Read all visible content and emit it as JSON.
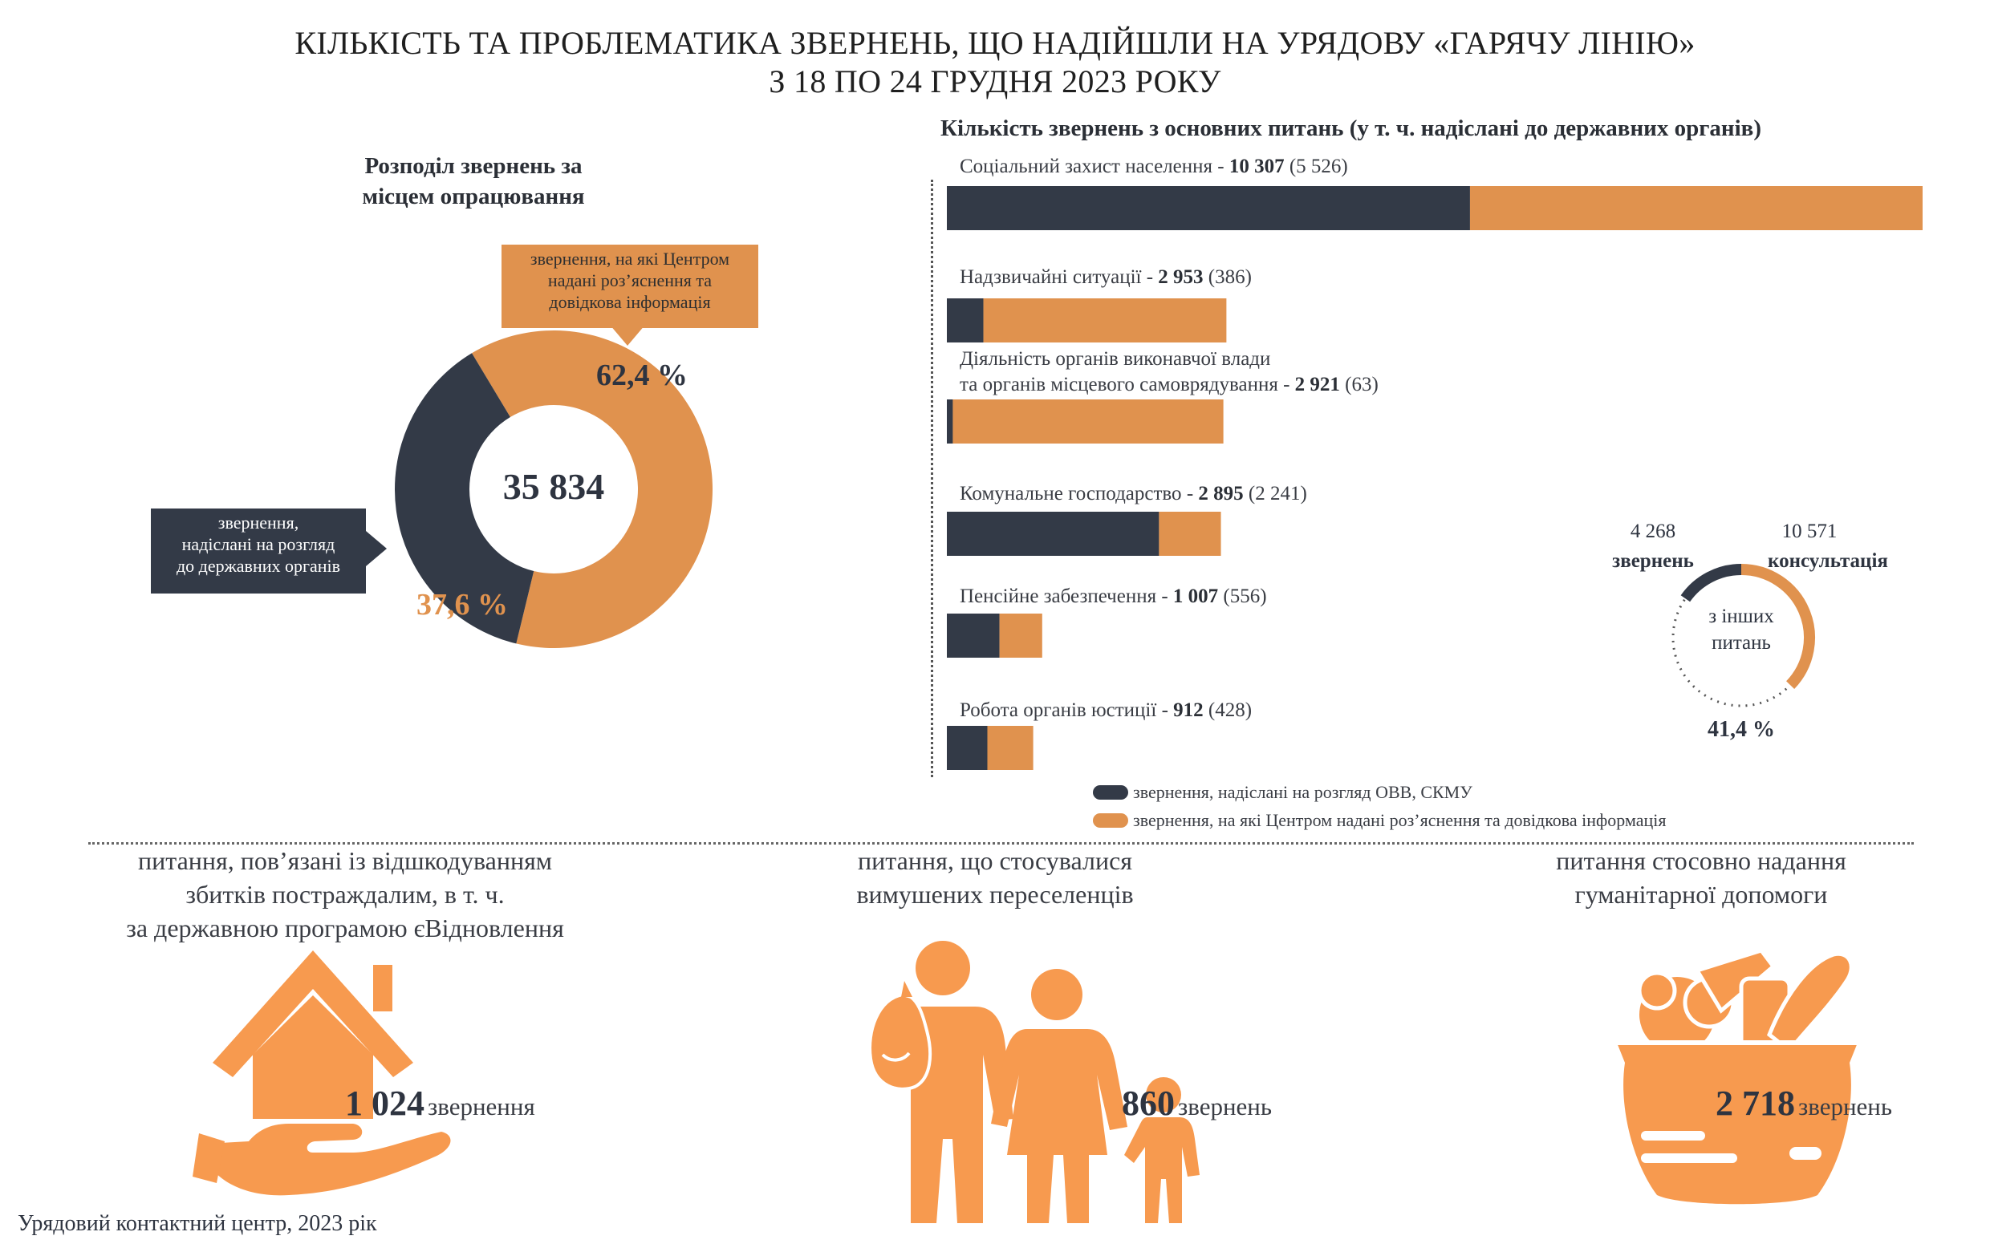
{
  "header": {
    "title_line1": "КІЛЬКІСТЬ ТА ПРОБЛЕМАТИКА ЗВЕРНЕНЬ, ЩО НАДІЙШЛИ НА УРЯДОВУ «ГАРЯЧУ ЛІНІЮ»",
    "title_line2": "З 18 ПО 24 ГРУДНЯ 2023 РОКУ"
  },
  "colors": {
    "dark": "#333a47",
    "orange": "#e0924e",
    "icon_orange": "#f79a4f"
  },
  "chart_data": [
    {
      "type": "pie",
      "title_line1": "Розподіл звернень за",
      "title_line2": "місцем опрацювання",
      "center_label": "35 834",
      "slices": [
        {
          "label_lines": [
            "звернення, на які Центром",
            "надані роз’яснення та",
            "довідкова інформація"
          ],
          "value": 62.4,
          "value_label": "62,4 %",
          "color": "#e0924e"
        },
        {
          "label_lines": [
            "звернення,",
            "надіслані на розгляд",
            "до державних органів"
          ],
          "value": 37.6,
          "value_label": "37,6 %",
          "color": "#333a47"
        }
      ]
    },
    {
      "type": "bar",
      "stacked": true,
      "orientation": "horizontal",
      "title": "Кількість звернень з основних питань (у т. ч. надіслані до державних органів)",
      "series": [
        {
          "name": "звернення, надіслані на розгляд ОВВ, СКМУ",
          "color": "#333a47"
        },
        {
          "name": "звернення, на які Центром надані роз’яснення та довідкова інформація",
          "color": "#e0924e"
        }
      ],
      "categories": [
        {
          "name_lines": [
            "Соціальний захист населення"
          ],
          "total": 10307,
          "total_label": "10 307",
          "sent": 5526,
          "sent_label": "(5 526)"
        },
        {
          "name_lines": [
            "Надзвичайні ситуації"
          ],
          "total": 2953,
          "total_label": "2 953",
          "sent": 386,
          "sent_label": "(386)"
        },
        {
          "name_lines": [
            "Діяльність органів виконавчої влади",
            "та органів місцевого самоврядування"
          ],
          "total": 2921,
          "total_label": "2 921",
          "sent": 63,
          "sent_label": "(63)"
        },
        {
          "name_lines": [
            "Комунальне господарство"
          ],
          "total": 2895,
          "total_label": "2 895",
          "sent": 2241,
          "sent_label": "(2 241)"
        },
        {
          "name_lines": [
            "Пенсійне забезпечення"
          ],
          "total": 1007,
          "total_label": "1 007",
          "sent": 556,
          "sent_label": "(556)"
        },
        {
          "name_lines": [
            "Робота органів юстиції"
          ],
          "total": 912,
          "total_label": "912",
          "sent": 428,
          "sent_label": "(428)"
        }
      ]
    },
    {
      "type": "pie",
      "center_label_lines": [
        "з інших",
        "питань"
      ],
      "share_value": 41.4,
      "share_label": "41,4 %",
      "segments": [
        {
          "value": 4268,
          "value_label": "4 268",
          "label": "звернень",
          "color": "#333a47"
        },
        {
          "value": 10571,
          "value_label": "10 571",
          "label": "консультація",
          "color": "#e0924e"
        }
      ]
    }
  ],
  "sections": [
    {
      "title_lines": [
        "питання, пов’язані із відшкодуванням",
        "збитків постраждалим, в т. ч.",
        "за державною програмою єВідновлення"
      ],
      "number": "1 024",
      "unit": "звернення",
      "icon": "house-in-hand-icon"
    },
    {
      "title_lines": [
        "питання, що стосувалися",
        "вимушених переселенців"
      ],
      "number": "860",
      "unit": "звернень",
      "icon": "family-with-bag-icon"
    },
    {
      "title_lines": [
        "питання стосовно надання",
        "гуманітарної допомоги"
      ],
      "number": "2 718",
      "unit": "звернень",
      "icon": "grocery-basket-icon"
    }
  ],
  "footer": {
    "source": "Урядовий контактний центр, 2023 рік"
  }
}
